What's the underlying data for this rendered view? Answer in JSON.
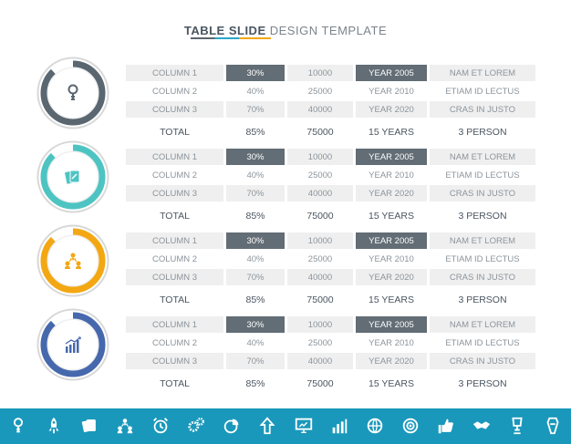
{
  "title": {
    "bold": "TABLE  SLIDE",
    "light": " DESIGN TEMPLATE"
  },
  "colors": {
    "dark": "#626d75",
    "teal": "#4ec4c2",
    "orange": "#f3a712",
    "blue": "#4668ad",
    "footer": "#1a98bb"
  },
  "gauges": [
    {
      "icon": "idea-key-icon",
      "color": "#5a6670",
      "fraction": 0.88
    },
    {
      "icon": "cards-icon",
      "color": "#4ec4c2",
      "fraction": 0.88
    },
    {
      "icon": "team-icon",
      "color": "#f3a712",
      "fraction": 0.88
    },
    {
      "icon": "growth-chart-icon",
      "color": "#4668ad",
      "fraction": 0.88
    }
  ],
  "tables": [
    {
      "rows": [
        [
          "COLUMN 1",
          "30%",
          "10000",
          "YEAR 2005",
          "NAM ET LOREM"
        ],
        [
          "COLUMN 2",
          "40%",
          "25000",
          "YEAR 2010",
          "ETIAM ID LECTUS"
        ],
        [
          "COLUMN 3",
          "70%",
          "40000",
          "YEAR 2020",
          "CRAS IN JUSTO"
        ]
      ],
      "total": [
        "TOTAL",
        "85%",
        "75000",
        "15 YEARS",
        "3 PERSON"
      ]
    },
    {
      "rows": [
        [
          "COLUMN 1",
          "30%",
          "10000",
          "YEAR 2005",
          "NAM ET LOREM"
        ],
        [
          "COLUMN 2",
          "40%",
          "25000",
          "YEAR 2010",
          "ETIAM ID LECTUS"
        ],
        [
          "COLUMN 3",
          "70%",
          "40000",
          "YEAR 2020",
          "CRAS IN JUSTO"
        ]
      ],
      "total": [
        "TOTAL",
        "85%",
        "75000",
        "15 YEARS",
        "3 PERSON"
      ]
    },
    {
      "rows": [
        [
          "COLUMN 1",
          "30%",
          "10000",
          "YEAR 2005",
          "NAM ET LOREM"
        ],
        [
          "COLUMN 2",
          "40%",
          "25000",
          "YEAR 2010",
          "ETIAM ID LECTUS"
        ],
        [
          "COLUMN 3",
          "70%",
          "40000",
          "YEAR 2020",
          "CRAS IN JUSTO"
        ]
      ],
      "total": [
        "TOTAL",
        "85%",
        "75000",
        "15 YEARS",
        "3 PERSON"
      ]
    },
    {
      "rows": [
        [
          "COLUMN 1",
          "30%",
          "10000",
          "YEAR 2005",
          "NAM ET LOREM"
        ],
        [
          "COLUMN 2",
          "40%",
          "25000",
          "YEAR 2010",
          "ETIAM ID LECTUS"
        ],
        [
          "COLUMN 3",
          "70%",
          "40000",
          "YEAR 2020",
          "CRAS IN JUSTO"
        ]
      ],
      "total": [
        "TOTAL",
        "85%",
        "75000",
        "15 YEARS",
        "3 PERSON"
      ]
    }
  ],
  "footer_icons": [
    "idea-key-icon",
    "rocket-icon",
    "cards-icon",
    "team-icon",
    "alarm-clock-icon",
    "gears-icon",
    "pie-chart-icon",
    "arrow-up-icon",
    "monitor-icon",
    "bar-chart-icon",
    "globe-icon",
    "target-icon",
    "thumbs-up-icon",
    "handshake-icon",
    "trophy-icon",
    "badge-icon"
  ]
}
